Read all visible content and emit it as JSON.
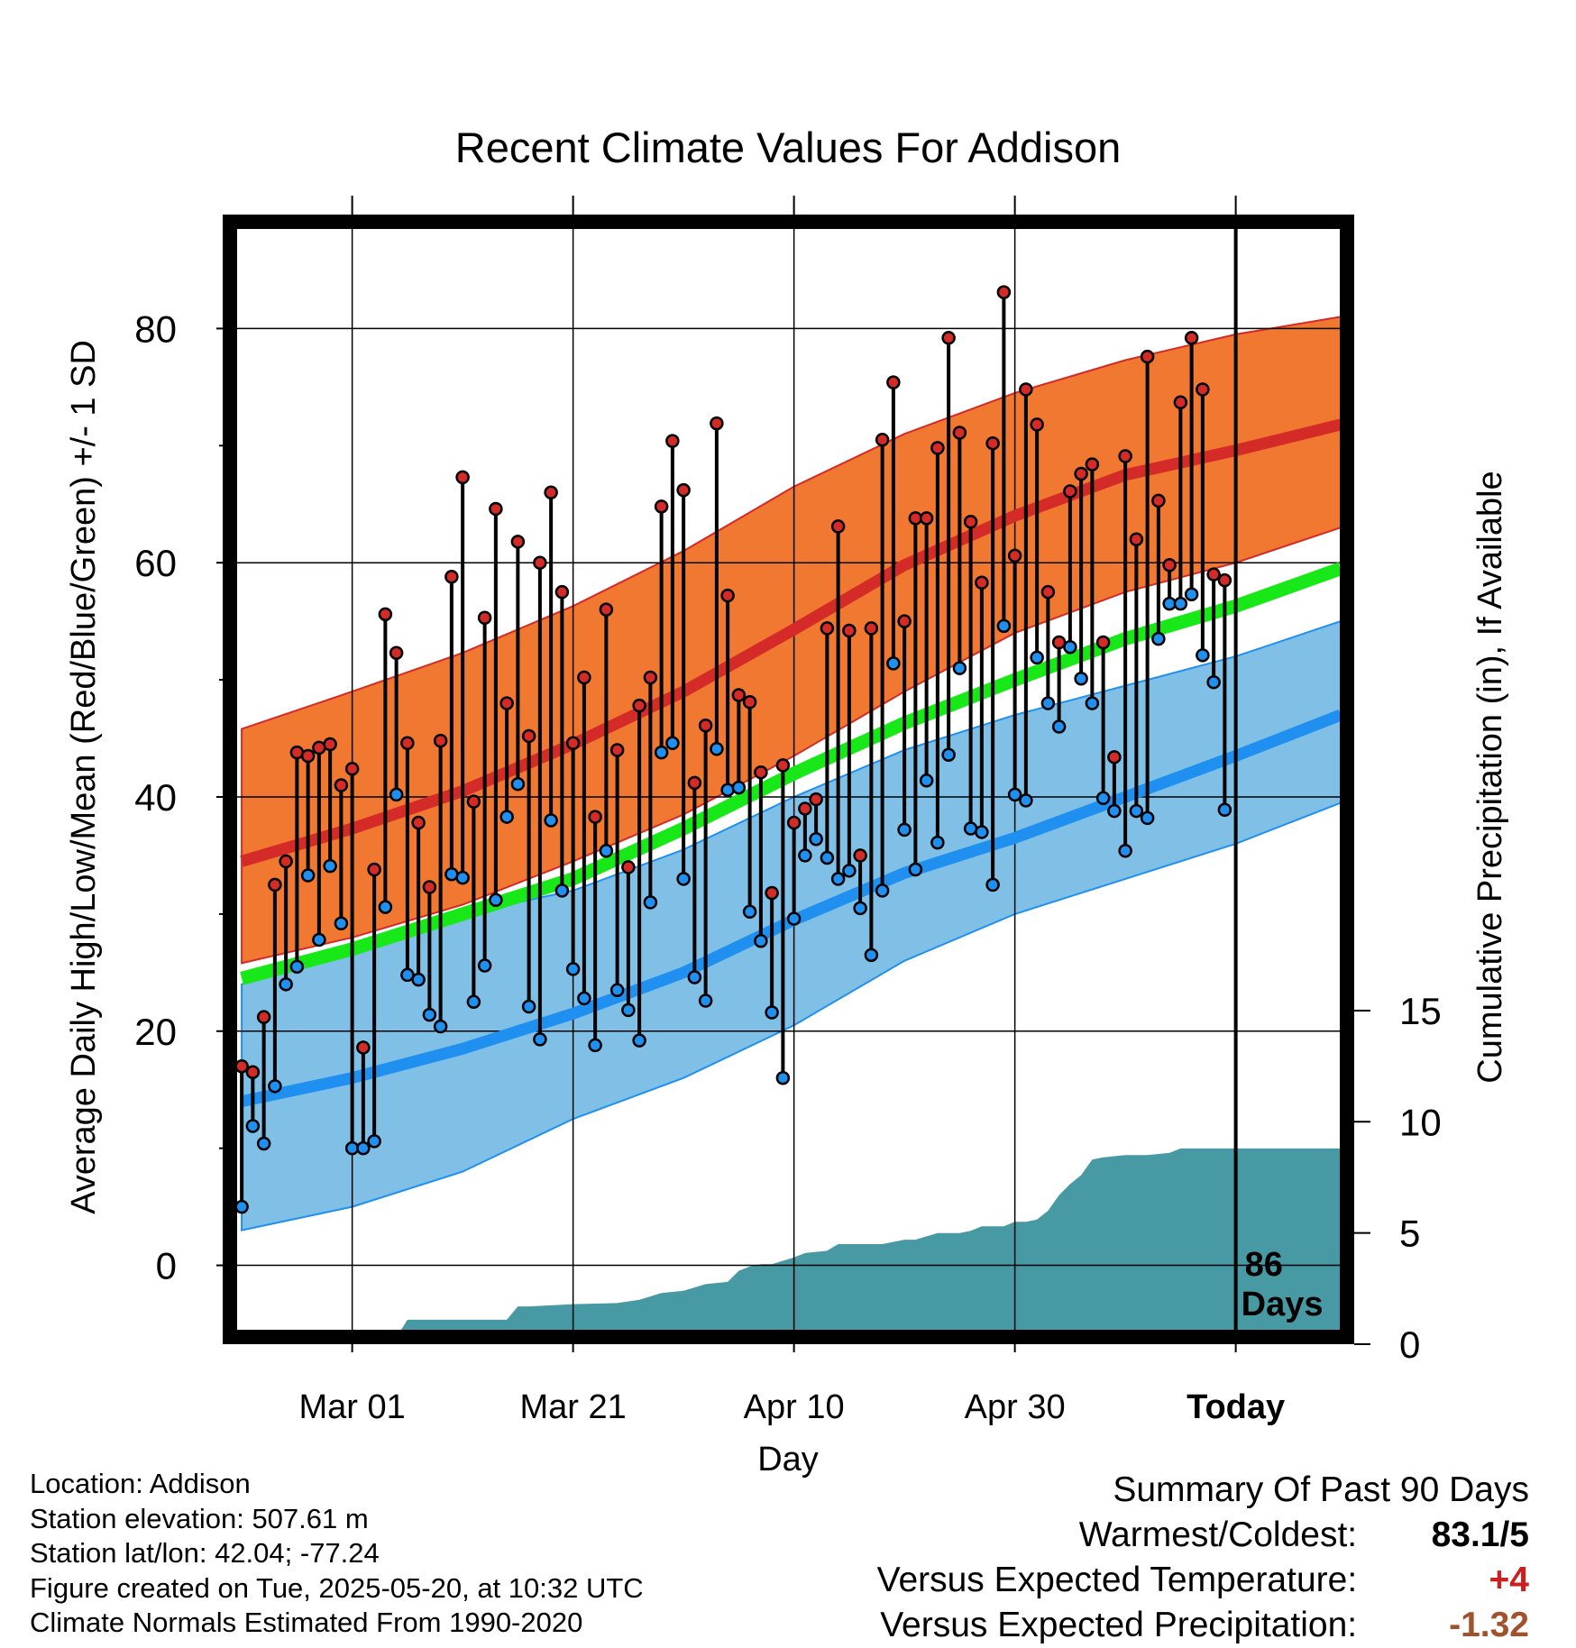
{
  "colors": {
    "high_band": "#f07830",
    "high_mean_line": "#d42a28",
    "low_band": "#80c0e6",
    "low_mean_line": "#1f90f0",
    "mean_line": "#18e818",
    "precip_fill": "#479aa3",
    "high_marker": "#d42a28",
    "low_marker": "#1f90f0",
    "today_line": "#000000",
    "temp_anomaly_text": "#cc2020",
    "precip_anomaly_text": "#a0522d"
  },
  "chart_data": {
    "type": "line",
    "title": "Recent Climate Values For Addison",
    "xlabel": "Day",
    "ylabel": "Average Daily High/Low/Mean (Red/Blue/Green) +/- 1 SD",
    "y2label": "Cumulative Precipitation (in), If Available",
    "x_ticks": [
      {
        "day": 10,
        "label": "Mar 01"
      },
      {
        "day": 30,
        "label": "Mar 21"
      },
      {
        "day": 50,
        "label": "Apr 10"
      },
      {
        "day": 70,
        "label": "Apr 30"
      },
      {
        "day": 90,
        "label": "Today"
      }
    ],
    "xlim": [
      -0.5,
      99.5
    ],
    "ylim": [
      -5.5,
      88.5
    ],
    "y_ticks": [
      0,
      20,
      40,
      60,
      80
    ],
    "y_minor_ticks": [
      10,
      30,
      50,
      70
    ],
    "y2_ticks": [
      0,
      5,
      10,
      15
    ],
    "y2lim": [
      -0.5,
      0
    ],
    "grid": true,
    "today_day": 90,
    "today_annotation": [
      "86",
      "Days"
    ],
    "normals": {
      "days": [
        0,
        10,
        20,
        30,
        40,
        50,
        60,
        70,
        80,
        90,
        99.5
      ],
      "high_mean": [
        34.5,
        37.3,
        40.5,
        44.5,
        49.0,
        54.3,
        59.8,
        64.0,
        67.5,
        69.6,
        71.8
      ],
      "high_plus_sd": [
        45.8,
        49.0,
        52.3,
        56.3,
        61.0,
        66.5,
        71.0,
        74.5,
        77.3,
        79.5,
        81.0
      ],
      "high_minus_sd": [
        25.8,
        28.0,
        30.8,
        34.5,
        38.5,
        43.5,
        49.0,
        54.0,
        57.5,
        60.0,
        63.0
      ],
      "mean": [
        24.5,
        27.0,
        30.0,
        33.0,
        37.3,
        42.0,
        46.3,
        50.0,
        53.5,
        56.3,
        59.5
      ],
      "low_mean": [
        14.0,
        16.0,
        18.5,
        21.5,
        25.0,
        29.5,
        33.5,
        36.5,
        40.0,
        43.5,
        47.0
      ],
      "low_plus_sd": [
        24.0,
        27.0,
        30.0,
        32.0,
        35.5,
        40.0,
        44.0,
        47.0,
        49.5,
        52.0,
        55.0
      ],
      "low_minus_sd": [
        3.0,
        5.0,
        8.0,
        12.5,
        16.0,
        20.5,
        26.0,
        30.0,
        33.0,
        36.0,
        39.5
      ]
    },
    "daily_high": [
      17,
      16.5,
      21.2,
      32.5,
      34.5,
      43.8,
      43.5,
      44.2,
      44.5,
      41,
      42.4,
      18.6,
      33.8,
      55.6,
      52.3,
      44.6,
      37.8,
      32.3,
      44.8,
      58.8,
      67.3,
      39.6,
      55.3,
      64.6,
      48,
      61.8,
      45.2,
      60,
      66,
      57.5,
      44.6,
      50.2,
      38.3,
      56,
      44,
      34,
      47.8,
      50.2,
      64.8,
      70.4,
      66.2,
      41.2,
      46.1,
      71.9,
      57.2,
      48.7,
      48.1,
      42.1,
      31.8,
      42.7,
      37.8,
      39,
      39.8,
      54.4,
      63.1,
      54.2,
      35,
      54.4,
      70.5,
      75.4,
      55,
      63.8,
      63.8,
      69.8,
      79.2,
      71.1,
      63.5,
      58.3,
      70.2,
      83.1,
      60.6,
      74.8,
      71.8,
      57.5,
      53.2,
      66.1,
      67.6,
      68.4,
      53.2,
      43.4,
      69.1,
      62,
      77.6,
      65.3,
      59.8,
      73.7,
      79.2,
      74.8,
      59,
      58.5
    ],
    "daily_low": [
      5,
      11.9,
      10.4,
      15.3,
      24,
      25.5,
      33.3,
      27.8,
      34.1,
      29.2,
      10,
      10,
      10.6,
      30.6,
      40.2,
      24.8,
      24.4,
      21.4,
      20.4,
      33.4,
      33.1,
      22.5,
      25.6,
      31.2,
      38.3,
      41.1,
      22.1,
      19.3,
      38,
      32,
      25.3,
      22.8,
      18.8,
      35.4,
      23.5,
      21.8,
      19.2,
      31,
      43.8,
      44.6,
      33,
      24.6,
      22.6,
      44.1,
      40.6,
      40.8,
      30.2,
      27.7,
      21.6,
      16,
      29.6,
      35,
      36.4,
      34.8,
      33,
      33.7,
      30.5,
      26.5,
      32,
      51.4,
      37.2,
      33.8,
      41.4,
      36.1,
      43.6,
      51,
      37.3,
      37,
      32.5,
      54.6,
      40.2,
      39.7,
      51.9,
      48,
      46,
      52.8,
      50.1,
      48,
      39.9,
      38.8,
      35.4,
      38.8,
      38.2,
      53.5,
      56.5,
      56.5,
      57.3,
      52.1,
      49.8,
      38.9
    ],
    "cumulative_precip": {
      "days": [
        0,
        7,
        8,
        10,
        14,
        15,
        24,
        25,
        26,
        30,
        34,
        36,
        38,
        40,
        42,
        44,
        45,
        46,
        47,
        48,
        50,
        51,
        53,
        54,
        56,
        58,
        60,
        61,
        63,
        65,
        66,
        67,
        68,
        69,
        70,
        71,
        72,
        73,
        74,
        75,
        76,
        77,
        78,
        79,
        80,
        82,
        84,
        85,
        86,
        88,
        90,
        99.5
      ],
      "values": [
        0,
        0,
        0.1,
        0.3,
        0.3,
        1.1,
        1.1,
        1.7,
        1.7,
        1.8,
        1.85,
        2.0,
        2.3,
        2.4,
        2.7,
        2.8,
        3.3,
        3.5,
        3.6,
        3.6,
        3.9,
        4.1,
        4.2,
        4.5,
        4.5,
        4.5,
        4.7,
        4.7,
        5.0,
        5.0,
        5.1,
        5.3,
        5.3,
        5.3,
        5.5,
        5.5,
        5.6,
        6.0,
        6.7,
        7.2,
        7.6,
        8.3,
        8.4,
        8.45,
        8.5,
        8.5,
        8.6,
        8.8,
        8.8,
        8.8,
        8.8,
        8.8
      ]
    }
  },
  "footer": {
    "location": "Location: Addison",
    "elevation": "Station elevation: 507.61 m",
    "latlon": "Station lat/lon: 42.04; -77.24",
    "created": "Figure created on Tue, 2025-05-20, at 10:32 UTC",
    "normals": "Climate Normals Estimated From 1990-2020"
  },
  "summary": {
    "heading": "Summary Of Past 90 Days",
    "warmest_coldest_label": "Warmest/Coldest:",
    "warmest_coldest_value": "83.1/5",
    "temp_label": "Versus Expected Temperature:",
    "temp_value": "+4",
    "precip_label": "Versus Expected Precipitation:",
    "precip_value": "-1.32"
  }
}
